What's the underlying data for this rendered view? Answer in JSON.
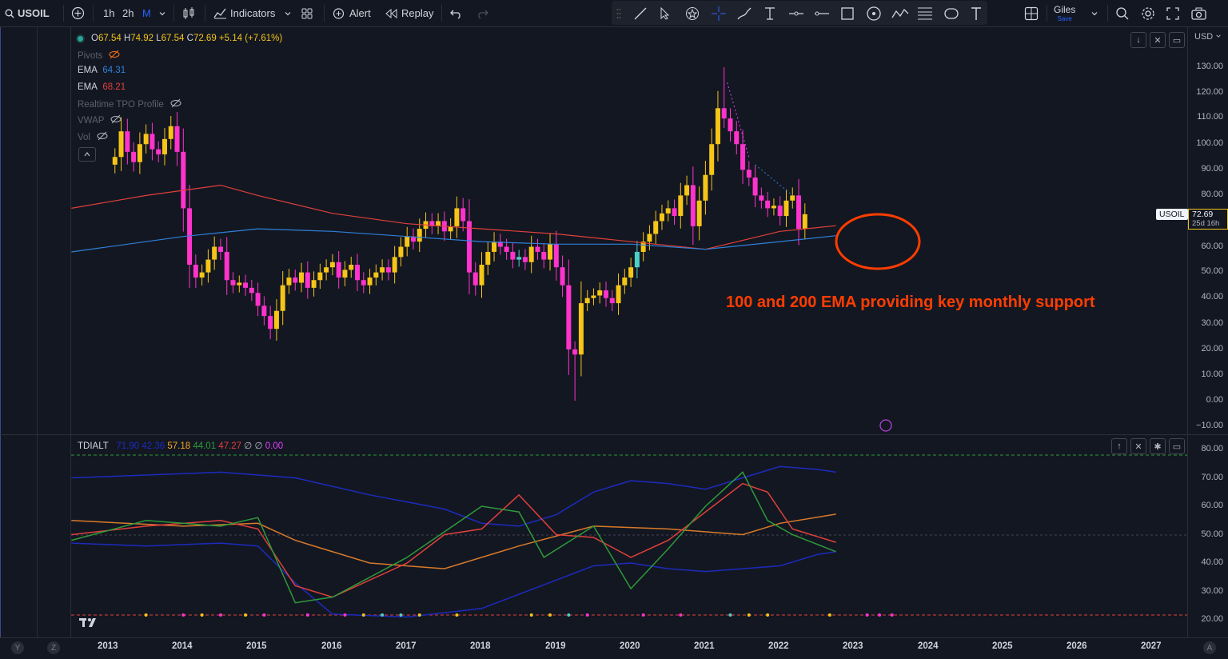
{
  "toolbar": {
    "symbol": "USOIL",
    "intervals": [
      "1h",
      "2h",
      "M"
    ],
    "indicators_label": "Indicators",
    "alert_label": "Alert",
    "replay_label": "Replay",
    "layout_name": "Giles",
    "save_label": "Save",
    "currency": "USD"
  },
  "legend": {
    "ohlc": {
      "o_label": "O",
      "o": "67.54",
      "h_label": "H",
      "h": "74.92",
      "l_label": "L",
      "l": "67.54",
      "c_label": "C",
      "c": "72.69",
      "change": "+5.14 (+7.61%)"
    },
    "pivots_label": "Pivots",
    "ema1_label": "EMA",
    "ema1_value": "64.31",
    "ema2_label": "EMA",
    "ema2_value": "68.21",
    "tpo_label": "Realtime TPO Profile",
    "vwap_label": "VWAP",
    "vol_label": "Vol"
  },
  "price_axis": [
    "130.00",
    "120.00",
    "110.00",
    "100.00",
    "90.00",
    "80.00",
    "60.00",
    "50.00",
    "40.00",
    "30.00",
    "20.00",
    "10.00",
    "0.00",
    "−10.00"
  ],
  "last_price": {
    "symbol": "USOIL",
    "price": "72.69",
    "countdown": "25d 16h"
  },
  "annotation": "100 and 200 EMA providing key monthly support",
  "osc_legend": {
    "name": "TDIALT",
    "values": [
      "71.90",
      "42.36",
      "57.18",
      "44.01",
      "47.27",
      "∅",
      "∅",
      "0.00"
    ]
  },
  "osc_axis": [
    "80.00",
    "70.00",
    "60.00",
    "50.00",
    "40.00",
    "30.00",
    "20.00"
  ],
  "time_axis": [
    "2013",
    "2014",
    "2015",
    "2016",
    "2017",
    "2018",
    "2019",
    "2020",
    "2021",
    "2022",
    "2023",
    "2024",
    "2025",
    "2026",
    "2027"
  ],
  "bottom_buttons": {
    "y": "Y",
    "z": "Z",
    "a": "A"
  },
  "colors": {
    "background": "#131722",
    "bull": "#f5c518",
    "bear": "#ff33cc",
    "bull_alt": "#4dd0c8",
    "ema_fast": "#2f80d8",
    "ema_slow": "#e0403a",
    "annotation": "#ff3d00"
  },
  "chart_data": {
    "type": "candlestick",
    "title": "USOIL monthly",
    "ylim": [
      -10,
      135
    ],
    "x_ticks": [
      "2013",
      "2014",
      "2015",
      "2016",
      "2017",
      "2018",
      "2019",
      "2020",
      "2021",
      "2022",
      "2023",
      "2024",
      "2025",
      "2026",
      "2027"
    ],
    "candles_yearly_approx": [
      {
        "year": "2013",
        "open": 92,
        "high": 112,
        "low": 85,
        "close": 97
      },
      {
        "year": "2014",
        "open": 97,
        "high": 107,
        "low": 53,
        "close": 53
      },
      {
        "year": "2015",
        "open": 53,
        "high": 62,
        "low": 34,
        "close": 37
      },
      {
        "year": "2016",
        "open": 37,
        "high": 55,
        "low": 26,
        "close": 54
      },
      {
        "year": "2017",
        "open": 54,
        "high": 60,
        "low": 42,
        "close": 60
      },
      {
        "year": "2018",
        "open": 60,
        "high": 77,
        "low": 42,
        "close": 45
      },
      {
        "year": "2019",
        "open": 45,
        "high": 66,
        "low": 45,
        "close": 61
      },
      {
        "year": "2020",
        "open": 61,
        "high": 63,
        "low": 0,
        "close": 48
      },
      {
        "year": "2021",
        "open": 48,
        "high": 85,
        "low": 47,
        "close": 75
      },
      {
        "year": "2022",
        "open": 75,
        "high": 130,
        "low": 71,
        "close": 80
      },
      {
        "year": "2023",
        "open": 80,
        "high": 84,
        "low": 64,
        "close": 72.69
      }
    ],
    "ema_fast_value": 64.31,
    "ema_slow_value": 68.21
  }
}
